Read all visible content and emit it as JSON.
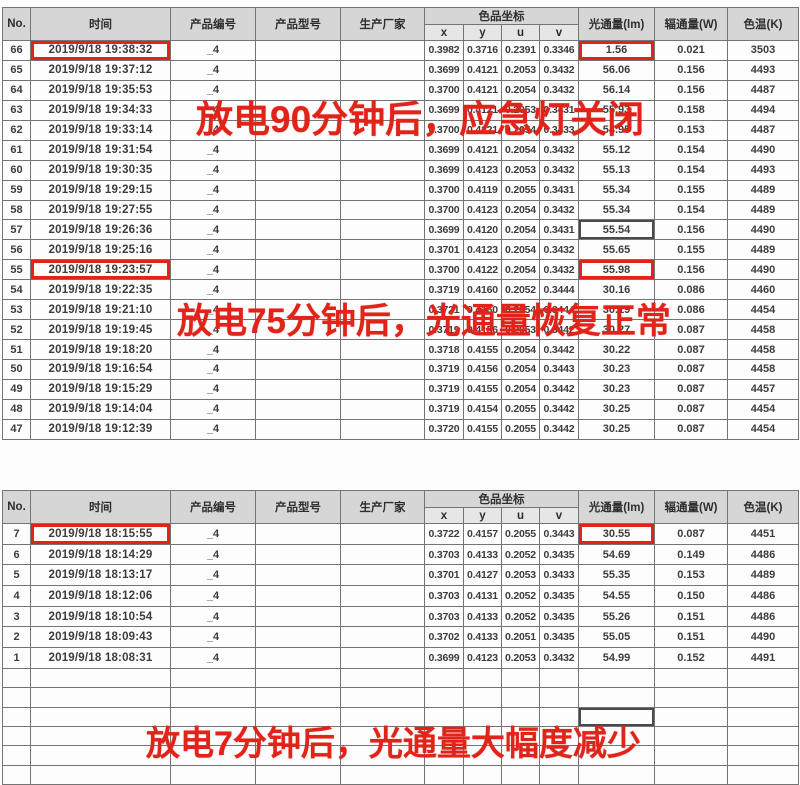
{
  "colors": {
    "annotation_red": "#e2231a",
    "header_bg": "#d6d6d6",
    "grid_line": "#747474",
    "selected_cell_border": "#4a4a4a"
  },
  "columns": {
    "no": "No.",
    "time": "时间",
    "product_no": "产品编号",
    "product_model": "产品型号",
    "manufacturer": "生产厂家",
    "chromaticity": "色品坐标",
    "x": "x",
    "y": "y",
    "u": "u",
    "v": "v",
    "flux": "光通量(lm)",
    "radiant": "辐通量(W)",
    "cct": "色温(K)"
  },
  "annotations": [
    {
      "id": "after-90min",
      "text": "放电90分钟后，应急灯关闭"
    },
    {
      "id": "after-75min",
      "text": "放电75分钟后，光通量恢复正常"
    },
    {
      "id": "after-7min",
      "text": "放电7分钟后，光通量大幅度减少"
    }
  ],
  "table1": {
    "rows": [
      {
        "no": "66",
        "time": "2019/9/18 19:38:32",
        "product_no": "_4",
        "product_model": "",
        "manufacturer": "",
        "x": "0.3982",
        "y": "0.3716",
        "u": "0.2391",
        "v": "0.3346",
        "flux": "1.56",
        "radiant": "0.021",
        "cct": "3503",
        "time_boxed": true,
        "flux_boxed": true
      },
      {
        "no": "65",
        "time": "2019/9/18 19:37:12",
        "product_no": "_4",
        "product_model": "",
        "manufacturer": "",
        "x": "0.3699",
        "y": "0.4121",
        "u": "0.2053",
        "v": "0.3432",
        "flux": "56.06",
        "radiant": "0.156",
        "cct": "4493"
      },
      {
        "no": "64",
        "time": "2019/9/18 19:35:53",
        "product_no": "_4",
        "product_model": "",
        "manufacturer": "",
        "x": "0.3700",
        "y": "0.4121",
        "u": "0.2054",
        "v": "0.3432",
        "flux": "56.14",
        "radiant": "0.156",
        "cct": "4487"
      },
      {
        "no": "63",
        "time": "2019/9/18 19:34:33",
        "product_no": "_4",
        "product_model": "",
        "manufacturer": "",
        "x": "0.3699",
        "y": "0.4121",
        "u": "0.2053",
        "v": "0.3431",
        "flux": "55.93",
        "radiant": "0.158",
        "cct": "4494"
      },
      {
        "no": "62",
        "time": "2019/9/18 19:33:14",
        "product_no": "_4",
        "product_model": "",
        "manufacturer": "",
        "x": "0.3700",
        "y": "0.4121",
        "u": "0.2054",
        "v": "0.3433",
        "flux": "54.95",
        "radiant": "0.153",
        "cct": "4487"
      },
      {
        "no": "61",
        "time": "2019/9/18 19:31:54",
        "product_no": "_4",
        "product_model": "",
        "manufacturer": "",
        "x": "0.3699",
        "y": "0.4121",
        "u": "0.2054",
        "v": "0.3432",
        "flux": "55.12",
        "radiant": "0.154",
        "cct": "4490"
      },
      {
        "no": "60",
        "time": "2019/9/18 19:30:35",
        "product_no": "_4",
        "product_model": "",
        "manufacturer": "",
        "x": "0.3699",
        "y": "0.4123",
        "u": "0.2053",
        "v": "0.3432",
        "flux": "55.13",
        "radiant": "0.154",
        "cct": "4493"
      },
      {
        "no": "59",
        "time": "2019/9/18 19:29:15",
        "product_no": "_4",
        "product_model": "",
        "manufacturer": "",
        "x": "0.3700",
        "y": "0.4119",
        "u": "0.2055",
        "v": "0.3431",
        "flux": "55.34",
        "radiant": "0.155",
        "cct": "4489"
      },
      {
        "no": "58",
        "time": "2019/9/18 19:27:55",
        "product_no": "_4",
        "product_model": "",
        "manufacturer": "",
        "x": "0.3700",
        "y": "0.4123",
        "u": "0.2054",
        "v": "0.3432",
        "flux": "55.34",
        "radiant": "0.154",
        "cct": "4489"
      },
      {
        "no": "57",
        "time": "2019/9/18 19:26:36",
        "product_no": "_4",
        "product_model": "",
        "manufacturer": "",
        "x": "0.3699",
        "y": "0.4120",
        "u": "0.2054",
        "v": "0.3431",
        "flux": "55.54",
        "radiant": "0.156",
        "cct": "4490",
        "flux_selected": true
      },
      {
        "no": "56",
        "time": "2019/9/18 19:25:16",
        "product_no": "_4",
        "product_model": "",
        "manufacturer": "",
        "x": "0.3701",
        "y": "0.4123",
        "u": "0.2054",
        "v": "0.3432",
        "flux": "55.65",
        "radiant": "0.155",
        "cct": "4489"
      },
      {
        "no": "55",
        "time": "2019/9/18 19:23:57",
        "product_no": "_4",
        "product_model": "",
        "manufacturer": "",
        "x": "0.3700",
        "y": "0.4122",
        "u": "0.2054",
        "v": "0.3432",
        "flux": "55.98",
        "radiant": "0.156",
        "cct": "4490",
        "time_boxed": true,
        "flux_boxed": true
      },
      {
        "no": "54",
        "time": "2019/9/18 19:22:35",
        "product_no": "_4",
        "product_model": "",
        "manufacturer": "",
        "x": "0.3719",
        "y": "0.4160",
        "u": "0.2052",
        "v": "0.3444",
        "flux": "30.16",
        "radiant": "0.086",
        "cct": "4460"
      },
      {
        "no": "53",
        "time": "2019/9/18 19:21:10",
        "product_no": "_4",
        "product_model": "",
        "manufacturer": "",
        "x": "0.3721",
        "y": "0.4160",
        "u": "0.2054",
        "v": "0.3444",
        "flux": "30.19",
        "radiant": "0.086",
        "cct": "4454"
      },
      {
        "no": "52",
        "time": "2019/9/18 19:19:45",
        "product_no": "_4",
        "product_model": "",
        "manufacturer": "",
        "x": "0.3719",
        "y": "0.4156",
        "u": "0.2053",
        "v": "0.3442",
        "flux": "30.27",
        "radiant": "0.087",
        "cct": "4458"
      },
      {
        "no": "51",
        "time": "2019/9/18 19:18:20",
        "product_no": "_4",
        "product_model": "",
        "manufacturer": "",
        "x": "0.3718",
        "y": "0.4155",
        "u": "0.2054",
        "v": "0.3442",
        "flux": "30.22",
        "radiant": "0.087",
        "cct": "4458"
      },
      {
        "no": "50",
        "time": "2019/9/18 19:16:54",
        "product_no": "_4",
        "product_model": "",
        "manufacturer": "",
        "x": "0.3719",
        "y": "0.4156",
        "u": "0.2054",
        "v": "0.3443",
        "flux": "30.23",
        "radiant": "0.087",
        "cct": "4458"
      },
      {
        "no": "49",
        "time": "2019/9/18 19:15:29",
        "product_no": "_4",
        "product_model": "",
        "manufacturer": "",
        "x": "0.3719",
        "y": "0.4155",
        "u": "0.2054",
        "v": "0.3442",
        "flux": "30.23",
        "radiant": "0.087",
        "cct": "4457"
      },
      {
        "no": "48",
        "time": "2019/9/18 19:14:04",
        "product_no": "_4",
        "product_model": "",
        "manufacturer": "",
        "x": "0.3719",
        "y": "0.4154",
        "u": "0.2055",
        "v": "0.3442",
        "flux": "30.25",
        "radiant": "0.087",
        "cct": "4454"
      },
      {
        "no": "47",
        "time": "2019/9/18 19:12:39",
        "product_no": "_4",
        "product_model": "",
        "manufacturer": "",
        "x": "0.3720",
        "y": "0.4155",
        "u": "0.2055",
        "v": "0.3442",
        "flux": "30.25",
        "radiant": "0.087",
        "cct": "4454"
      }
    ],
    "empty_rows": 0
  },
  "table2": {
    "rows": [
      {
        "no": "7",
        "time": "2019/9/18 18:15:55",
        "product_no": "_4",
        "product_model": "",
        "manufacturer": "",
        "x": "0.3722",
        "y": "0.4157",
        "u": "0.2055",
        "v": "0.3443",
        "flux": "30.55",
        "radiant": "0.087",
        "cct": "4451",
        "time_boxed": true,
        "flux_boxed": true
      },
      {
        "no": "6",
        "time": "2019/9/18 18:14:29",
        "product_no": "_4",
        "product_model": "",
        "manufacturer": "",
        "x": "0.3703",
        "y": "0.4133",
        "u": "0.2052",
        "v": "0.3435",
        "flux": "54.69",
        "radiant": "0.149",
        "cct": "4486"
      },
      {
        "no": "5",
        "time": "2019/9/18 18:13:17",
        "product_no": "_4",
        "product_model": "",
        "manufacturer": "",
        "x": "0.3701",
        "y": "0.4127",
        "u": "0.2053",
        "v": "0.3433",
        "flux": "55.35",
        "radiant": "0.153",
        "cct": "4489"
      },
      {
        "no": "4",
        "time": "2019/9/18 18:12:06",
        "product_no": "_4",
        "product_model": "",
        "manufacturer": "",
        "x": "0.3703",
        "y": "0.4131",
        "u": "0.2052",
        "v": "0.3435",
        "flux": "54.55",
        "radiant": "0.150",
        "cct": "4486"
      },
      {
        "no": "3",
        "time": "2019/9/18 18:10:54",
        "product_no": "_4",
        "product_model": "",
        "manufacturer": "",
        "x": "0.3703",
        "y": "0.4133",
        "u": "0.2052",
        "v": "0.3435",
        "flux": "55.26",
        "radiant": "0.151",
        "cct": "4486"
      },
      {
        "no": "2",
        "time": "2019/9/18 18:09:43",
        "product_no": "_4",
        "product_model": "",
        "manufacturer": "",
        "x": "0.3702",
        "y": "0.4133",
        "u": "0.2051",
        "v": "0.3435",
        "flux": "55.05",
        "radiant": "0.151",
        "cct": "4490"
      },
      {
        "no": "1",
        "time": "2019/9/18 18:08:31",
        "product_no": "_4",
        "product_model": "",
        "manufacturer": "",
        "x": "0.3699",
        "y": "0.4123",
        "u": "0.2053",
        "v": "0.3432",
        "flux": "54.99",
        "radiant": "0.152",
        "cct": "4491"
      }
    ],
    "empty_rows": 6,
    "selected_empty_row_index": 2
  }
}
